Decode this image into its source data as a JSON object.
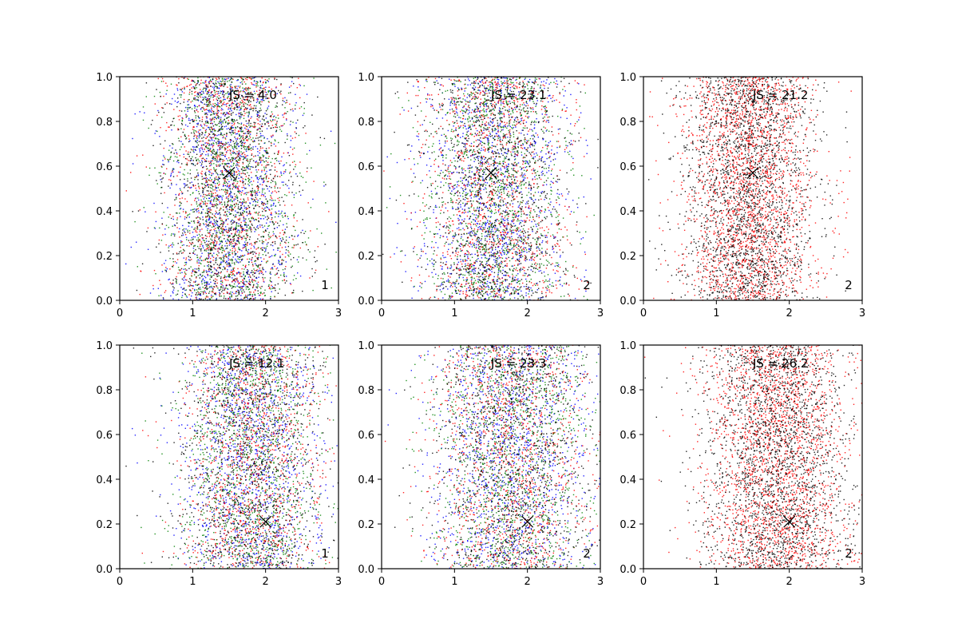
{
  "chart_data": [
    {
      "type": "scatter",
      "xlim": [
        0,
        3
      ],
      "ylim": [
        0,
        1
      ],
      "xticks": [
        "0",
        "1",
        "2",
        "3"
      ],
      "yticks": [
        "0.0",
        "0.2",
        "0.4",
        "0.6",
        "0.8",
        "1.0"
      ],
      "annotation": "JS = 4.0",
      "corner_label": "1",
      "marker": {
        "x": 1.5,
        "y": 0.57,
        "symbol": "x"
      },
      "series_colors": [
        "#0000ff",
        "#ff0000",
        "#008000",
        "#000000"
      ],
      "distribution": {
        "x_center": 1.5,
        "x_spread": 0.45,
        "points_per_series": 1200
      },
      "grid": false,
      "legend": "none"
    },
    {
      "type": "scatter",
      "xlim": [
        0,
        3
      ],
      "ylim": [
        0,
        1
      ],
      "xticks": [
        "0",
        "1",
        "2",
        "3"
      ],
      "yticks": [
        "0.0",
        "0.2",
        "0.4",
        "0.6",
        "0.8",
        "1.0"
      ],
      "annotation": "JS = 23.1",
      "corner_label": "2",
      "marker": {
        "x": 1.5,
        "y": 0.57,
        "symbol": "x"
      },
      "series_colors": [
        "#0000ff",
        "#ff0000",
        "#008000",
        "#000000"
      ],
      "distribution": {
        "x_center": 1.55,
        "x_spread": 0.5,
        "points_per_series": 1200
      },
      "grid": false,
      "legend": "none"
    },
    {
      "type": "scatter",
      "xlim": [
        0,
        3
      ],
      "ylim": [
        0,
        1
      ],
      "xticks": [
        "0",
        "1",
        "2",
        "3"
      ],
      "yticks": [
        "0.0",
        "0.2",
        "0.4",
        "0.6",
        "0.8",
        "1.0"
      ],
      "annotation": "JS = 21.2",
      "corner_label": "2",
      "marker": {
        "x": 1.5,
        "y": 0.57,
        "symbol": "x"
      },
      "series_colors": [
        "#ff0000",
        "#000000"
      ],
      "distribution": {
        "x_center": 1.45,
        "x_spread": 0.45,
        "points_per_series": 2200
      },
      "grid": false,
      "legend": "none"
    },
    {
      "type": "scatter",
      "xlim": [
        0,
        3
      ],
      "ylim": [
        0,
        1
      ],
      "xticks": [
        "0",
        "1",
        "2",
        "3"
      ],
      "yticks": [
        "0.0",
        "0.2",
        "0.4",
        "0.6",
        "0.8",
        "1.0"
      ],
      "annotation": "JS = 12.1",
      "corner_label": "1",
      "marker": {
        "x": 2.0,
        "y": 0.21,
        "symbol": "x"
      },
      "series_colors": [
        "#0000ff",
        "#ff0000",
        "#008000",
        "#000000"
      ],
      "distribution": {
        "x_center": 1.8,
        "x_spread": 0.5,
        "points_per_series": 1200
      },
      "grid": false,
      "legend": "none"
    },
    {
      "type": "scatter",
      "xlim": [
        0,
        3
      ],
      "ylim": [
        0,
        1
      ],
      "xticks": [
        "0",
        "1",
        "2",
        "3"
      ],
      "yticks": [
        "0.0",
        "0.2",
        "0.4",
        "0.6",
        "0.8",
        "1.0"
      ],
      "annotation": "JS = 23.3",
      "corner_label": "2",
      "marker": {
        "x": 2.0,
        "y": 0.21,
        "symbol": "x"
      },
      "series_colors": [
        "#0000ff",
        "#ff0000",
        "#008000",
        "#000000"
      ],
      "distribution": {
        "x_center": 1.8,
        "x_spread": 0.55,
        "points_per_series": 1200
      },
      "grid": false,
      "legend": "none"
    },
    {
      "type": "scatter",
      "xlim": [
        0,
        3
      ],
      "ylim": [
        0,
        1
      ],
      "xticks": [
        "0",
        "1",
        "2",
        "3"
      ],
      "yticks": [
        "0.0",
        "0.2",
        "0.4",
        "0.6",
        "0.8",
        "1.0"
      ],
      "annotation": "JS = 26.2",
      "corner_label": "2",
      "marker": {
        "x": 2.0,
        "y": 0.21,
        "symbol": "x"
      },
      "series_colors": [
        "#ff0000",
        "#000000"
      ],
      "distribution": {
        "x_center": 1.85,
        "x_spread": 0.5,
        "points_per_series": 2200
      },
      "grid": false,
      "legend": "none"
    }
  ]
}
